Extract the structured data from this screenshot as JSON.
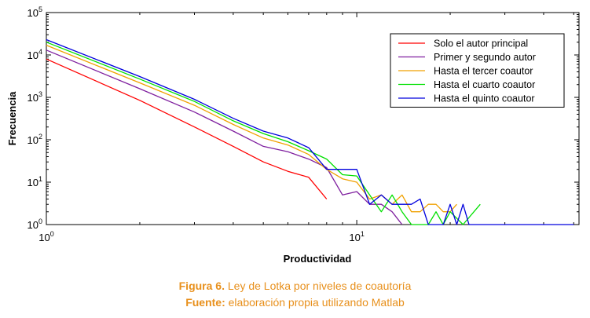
{
  "chart_data": {
    "type": "line",
    "xscale": "log",
    "yscale": "log",
    "xlim": [
      1,
      52
    ],
    "ylim": [
      1,
      100000
    ],
    "xlabel": "Productividad",
    "ylabel": "Frecuencia",
    "x_ticks": [
      {
        "value": 1,
        "base": "10",
        "exp": "0"
      },
      {
        "value": 10,
        "base": "10",
        "exp": "1"
      }
    ],
    "y_ticks": [
      {
        "value": 1,
        "base": "10",
        "exp": "0"
      },
      {
        "value": 10,
        "base": "10",
        "exp": "1"
      },
      {
        "value": 100,
        "base": "10",
        "exp": "2"
      },
      {
        "value": 1000,
        "base": "10",
        "exp": "3"
      },
      {
        "value": 10000,
        "base": "10",
        "exp": "4"
      },
      {
        "value": 100000,
        "base": "10",
        "exp": "5"
      }
    ],
    "grid": false,
    "legend_position": "top-right",
    "series": [
      {
        "name": "Solo el autor principal",
        "color": "#ff0000",
        "points": [
          [
            1,
            8000
          ],
          [
            2,
            850
          ],
          [
            3,
            200
          ],
          [
            4,
            70
          ],
          [
            5,
            30
          ],
          [
            6,
            18
          ],
          [
            7,
            13
          ],
          [
            8,
            4
          ]
        ]
      },
      {
        "name": "Primer y segundo autor",
        "color": "#7f1f9f",
        "points": [
          [
            1,
            13000
          ],
          [
            2,
            1600
          ],
          [
            3,
            450
          ],
          [
            4,
            160
          ],
          [
            5,
            70
          ],
          [
            6,
            52
          ],
          [
            7,
            35
          ],
          [
            8,
            22
          ],
          [
            9,
            5
          ],
          [
            10,
            6
          ],
          [
            11,
            3
          ],
          [
            12,
            3
          ],
          [
            13,
            2
          ],
          [
            14,
            1
          ]
        ]
      },
      {
        "name": "Hasta el tercer coautor",
        "color": "#f0a000",
        "points": [
          [
            1,
            17000
          ],
          [
            2,
            2200
          ],
          [
            3,
            650
          ],
          [
            4,
            230
          ],
          [
            5,
            110
          ],
          [
            6,
            75
          ],
          [
            7,
            45
          ],
          [
            8,
            20
          ],
          [
            9,
            12
          ],
          [
            10,
            10
          ],
          [
            11,
            4
          ],
          [
            12,
            5
          ],
          [
            13,
            3
          ],
          [
            14,
            5
          ],
          [
            15,
            2
          ],
          [
            16,
            2
          ],
          [
            17,
            3
          ],
          [
            18,
            3
          ],
          [
            19,
            2
          ],
          [
            20,
            2
          ],
          [
            21,
            3
          ]
        ]
      },
      {
        "name": "Hasta el cuarto coautor",
        "color": "#00e000",
        "points": [
          [
            1,
            20000
          ],
          [
            2,
            2700
          ],
          [
            3,
            800
          ],
          [
            4,
            280
          ],
          [
            5,
            140
          ],
          [
            6,
            90
          ],
          [
            7,
            55
          ],
          [
            8,
            35
          ],
          [
            9,
            15
          ],
          [
            10,
            14
          ],
          [
            11,
            5
          ],
          [
            12,
            2
          ],
          [
            13,
            5
          ],
          [
            14,
            2
          ],
          [
            15,
            1
          ],
          [
            16,
            1
          ],
          [
            17,
            1
          ],
          [
            18,
            2
          ],
          [
            19,
            1
          ],
          [
            20,
            2
          ],
          [
            22,
            1
          ],
          [
            25,
            3
          ]
        ]
      },
      {
        "name": "Hasta el quinto coautor",
        "color": "#0000dd",
        "points": [
          [
            1,
            23000
          ],
          [
            2,
            3100
          ],
          [
            3,
            900
          ],
          [
            4,
            320
          ],
          [
            5,
            160
          ],
          [
            6,
            110
          ],
          [
            7,
            65
          ],
          [
            8,
            20
          ],
          [
            9,
            20
          ],
          [
            10,
            20
          ],
          [
            11,
            3
          ],
          [
            12,
            5
          ],
          [
            13,
            3
          ],
          [
            14,
            3
          ],
          [
            15,
            3
          ],
          [
            16,
            4
          ],
          [
            17,
            1
          ],
          [
            18,
            1
          ],
          [
            19,
            1
          ],
          [
            20,
            3
          ],
          [
            21,
            1
          ],
          [
            22,
            3
          ],
          [
            23,
            1
          ],
          [
            24,
            1
          ],
          [
            26,
            1
          ],
          [
            30,
            1
          ],
          [
            34,
            1
          ],
          [
            40,
            1
          ],
          [
            50,
            1
          ]
        ]
      }
    ]
  },
  "caption": {
    "line1_bold": "Figura 6.",
    "line1_text": " Ley de Lotka por niveles de coautoría",
    "line2_bold": "Fuente:",
    "line2_text": " elaboración propia utilizando Matlab"
  }
}
